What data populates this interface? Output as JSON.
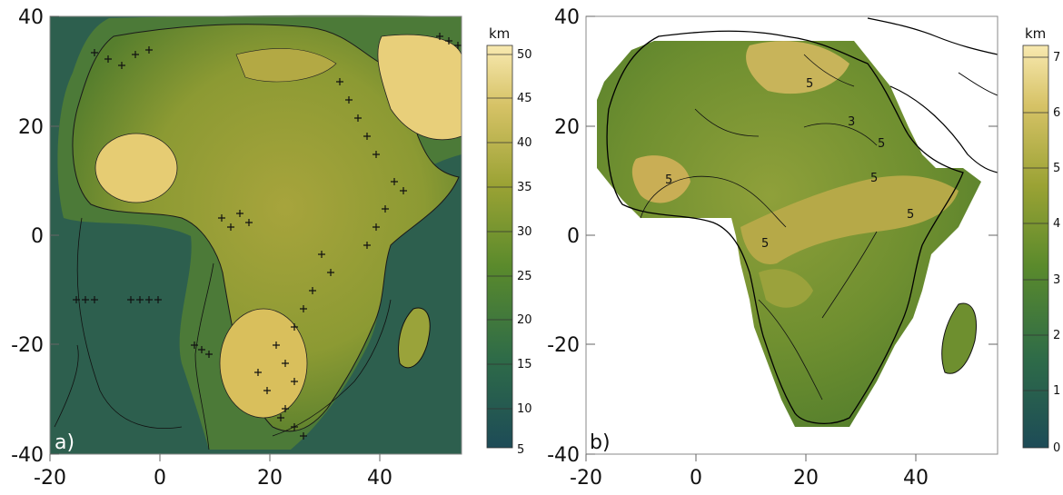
{
  "colors": {
    "ocean_low": "#1f4f55",
    "mid_green": "#4f7d2f",
    "olive": "#8b9a2e",
    "khaki": "#c8b450",
    "sand": "#f3e3a2"
  },
  "panels": [
    {
      "id": "a",
      "label": "a)",
      "x_ticks": [
        "-20",
        "0",
        "20",
        "40"
      ],
      "y_ticks": [
        "40",
        "20",
        "0",
        "-20",
        "-40"
      ],
      "colorbar": {
        "unit": "km",
        "ticks": [
          "50",
          "45",
          "40",
          "35",
          "30",
          "25",
          "20",
          "15",
          "10",
          "5"
        ],
        "range": [
          5,
          50
        ]
      }
    },
    {
      "id": "b",
      "label": "b)",
      "x_ticks": [
        "-20",
        "0",
        "20",
        "40"
      ],
      "y_ticks": [
        "40",
        "20",
        "0",
        "-20",
        "-40"
      ],
      "colorbar": {
        "unit": "km",
        "ticks": [
          "7",
          "6",
          "5",
          "4",
          "3",
          "2",
          "1",
          "0"
        ],
        "range": [
          0,
          7
        ]
      }
    }
  ],
  "contour_labels_b": [
    "5",
    "5",
    "5",
    "5",
    "5",
    "3",
    "5"
  ]
}
